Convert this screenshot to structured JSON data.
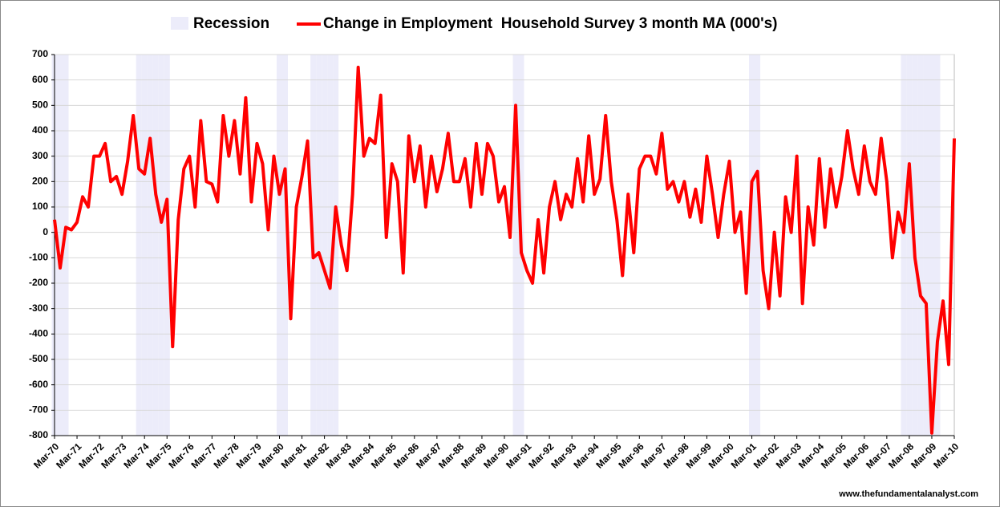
{
  "chart_data": {
    "type": "line",
    "categories": [
      "Mar-70",
      null,
      null,
      null,
      "Mar-71",
      null,
      null,
      null,
      "Mar-72",
      null,
      null,
      null,
      "Mar-73",
      null,
      null,
      null,
      "Mar-74",
      null,
      null,
      null,
      "Mar-75",
      null,
      null,
      null,
      "Mar-76",
      null,
      null,
      null,
      "Mar-77",
      null,
      null,
      null,
      "Mar-78",
      null,
      null,
      null,
      "Mar-79",
      null,
      null,
      null,
      "Mar-80",
      null,
      null,
      null,
      "Mar-81",
      null,
      null,
      null,
      "Mar-82",
      null,
      null,
      null,
      "Mar-83",
      null,
      null,
      null,
      "Mar-84",
      null,
      null,
      null,
      "Mar-85",
      null,
      null,
      null,
      "Mar-86",
      null,
      null,
      null,
      "Mar-87",
      null,
      null,
      null,
      "Mar-88",
      null,
      null,
      null,
      "Mar-89",
      null,
      null,
      null,
      "Mar-90",
      null,
      null,
      null,
      "Mar-91",
      null,
      null,
      null,
      "Mar-92",
      null,
      null,
      null,
      "Mar-93",
      null,
      null,
      null,
      "Mar-94",
      null,
      null,
      null,
      "Mar-95",
      null,
      null,
      null,
      "Mar-96",
      null,
      null,
      null,
      "Mar-97",
      null,
      null,
      null,
      "Mar-98",
      null,
      null,
      null,
      "Mar-99",
      null,
      null,
      null,
      "Mar-00",
      null,
      null,
      null,
      "Mar-01",
      null,
      null,
      null,
      "Mar-02",
      null,
      null,
      null,
      "Mar-03",
      null,
      null,
      null,
      "Mar-04",
      null,
      null,
      null,
      "Mar-05",
      null,
      null,
      null,
      "Mar-06",
      null,
      null,
      null,
      "Mar-07",
      null,
      null,
      null,
      "Mar-08",
      null,
      null,
      null,
      "Mar-09",
      null,
      null,
      null,
      "Mar-10"
    ],
    "series": [
      {
        "name": "Recession",
        "type": "bar",
        "axis": "y2",
        "color": "#ececfa",
        "values": [
          1,
          1,
          1,
          0,
          0,
          0,
          0,
          0,
          0,
          0,
          0,
          0,
          0,
          0,
          0,
          1,
          1,
          1,
          1,
          1,
          1,
          0,
          0,
          0,
          0,
          0,
          0,
          0,
          0,
          0,
          0,
          0,
          0,
          0,
          0,
          0,
          0,
          0,
          0,
          0,
          1,
          1,
          0,
          0,
          0,
          0,
          1,
          1,
          1,
          1,
          1,
          0,
          0,
          0,
          0,
          0,
          0,
          0,
          0,
          0,
          0,
          0,
          0,
          0,
          0,
          0,
          0,
          0,
          0,
          0,
          0,
          0,
          0,
          0,
          0,
          0,
          0,
          0,
          0,
          0,
          0,
          0,
          1,
          1,
          0,
          0,
          0,
          0,
          0,
          0,
          0,
          0,
          0,
          0,
          0,
          0,
          0,
          0,
          0,
          0,
          0,
          0,
          0,
          0,
          0,
          0,
          0,
          0,
          0,
          0,
          0,
          0,
          0,
          0,
          0,
          0,
          0,
          0,
          0,
          0,
          0,
          0,
          0,
          0,
          1,
          1,
          0,
          0,
          0,
          0,
          0,
          0,
          0,
          0,
          0,
          0,
          0,
          0,
          0,
          0,
          0,
          0,
          0,
          0,
          0,
          0,
          0,
          0,
          0,
          0,
          0,
          1,
          1,
          1,
          1,
          1,
          1,
          1,
          0,
          0,
          0
        ]
      },
      {
        "name": "Change in Employment  Household Survey 3 month MA (000's)",
        "color": "#ff0000",
        "values": [
          50,
          -140,
          20,
          10,
          40,
          140,
          100,
          300,
          300,
          350,
          200,
          220,
          150,
          280,
          460,
          250,
          230,
          370,
          150,
          40,
          130,
          -450,
          50,
          250,
          300,
          100,
          440,
          200,
          190,
          120,
          460,
          300,
          440,
          230,
          530,
          120,
          350,
          270,
          10,
          300,
          150,
          250,
          -340,
          100,
          220,
          360,
          -100,
          -80,
          -150,
          -220,
          100,
          -50,
          -150,
          150,
          650,
          300,
          370,
          350,
          540,
          -20,
          270,
          200,
          -160,
          380,
          200,
          340,
          100,
          300,
          160,
          250,
          390,
          200,
          200,
          290,
          100,
          350,
          150,
          350,
          300,
          120,
          180,
          -20,
          500,
          -80,
          -150,
          -200,
          50,
          -160,
          100,
          200,
          50,
          150,
          100,
          290,
          120,
          380,
          150,
          210,
          460,
          200,
          50,
          -170,
          150,
          -80,
          250,
          300,
          300,
          230,
          390,
          170,
          200,
          120,
          200,
          60,
          170,
          40,
          300,
          150,
          -20,
          150,
          280,
          0,
          80,
          -240,
          200,
          240,
          -150,
          -300,
          0,
          -250,
          140,
          0,
          300,
          -280,
          100,
          -50,
          290,
          20,
          250,
          100,
          220,
          400,
          250,
          150,
          340,
          200,
          150,
          370,
          200,
          -100,
          80,
          0,
          270,
          -100,
          -250,
          -280,
          -790,
          -430,
          -270,
          -520,
          370
        ]
      }
    ],
    "ylim": [
      -800,
      700
    ],
    "yticks": [
      -800,
      -700,
      -600,
      -500,
      -400,
      -300,
      -200,
      -100,
      0,
      100,
      200,
      300,
      400,
      500,
      600,
      700
    ],
    "y2lim": [
      0,
      1
    ],
    "grid": true,
    "legend": "top",
    "source": "www.thefundamentalanalyst.com"
  }
}
